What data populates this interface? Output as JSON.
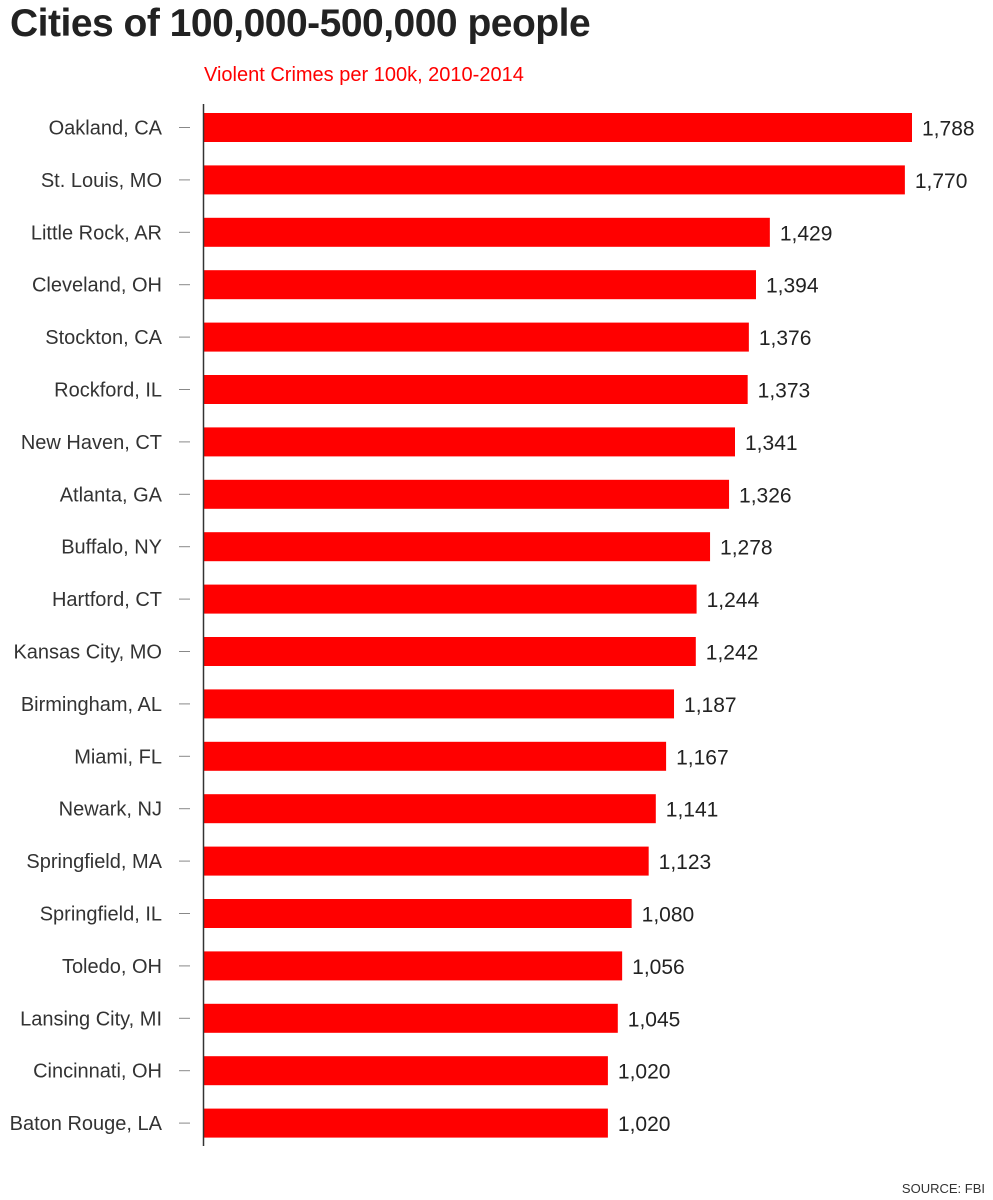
{
  "chart_data": {
    "type": "bar",
    "orientation": "horizontal",
    "title": "Cities of 100,000-500,000 people",
    "subtitle": "Violent Crimes per 100k, 2010-2014",
    "source": "SOURCE: FBI",
    "bar_color": "#ff0000",
    "xlim": [
      0,
      1788
    ],
    "grid": false,
    "categories": [
      "Oakland, CA",
      "St. Louis, MO",
      "Little Rock, AR",
      "Cleveland, OH",
      "Stockton, CA",
      "Rockford, IL",
      "New Haven, CT",
      "Atlanta, GA",
      "Buffalo, NY",
      "Hartford, CT",
      "Kansas City, MO",
      "Birmingham, AL",
      "Miami, FL",
      "Newark, NJ",
      "Springfield, MA",
      "Springfield, IL",
      "Toledo, OH",
      "Lansing City, MI",
      "Cincinnati, OH",
      "Baton Rouge, LA"
    ],
    "values": [
      1788,
      1770,
      1429,
      1394,
      1376,
      1373,
      1341,
      1326,
      1278,
      1244,
      1242,
      1187,
      1167,
      1141,
      1123,
      1080,
      1056,
      1045,
      1020,
      1020
    ],
    "value_labels": [
      "1,788",
      "1,770",
      "1,429",
      "1,394",
      "1,376",
      "1,373",
      "1,341",
      "1,326",
      "1,278",
      "1,244",
      "1,242",
      "1,187",
      "1,167",
      "1,141",
      "1,123",
      "1,080",
      "1,056",
      "1,045",
      "1,020",
      "1,020"
    ]
  }
}
